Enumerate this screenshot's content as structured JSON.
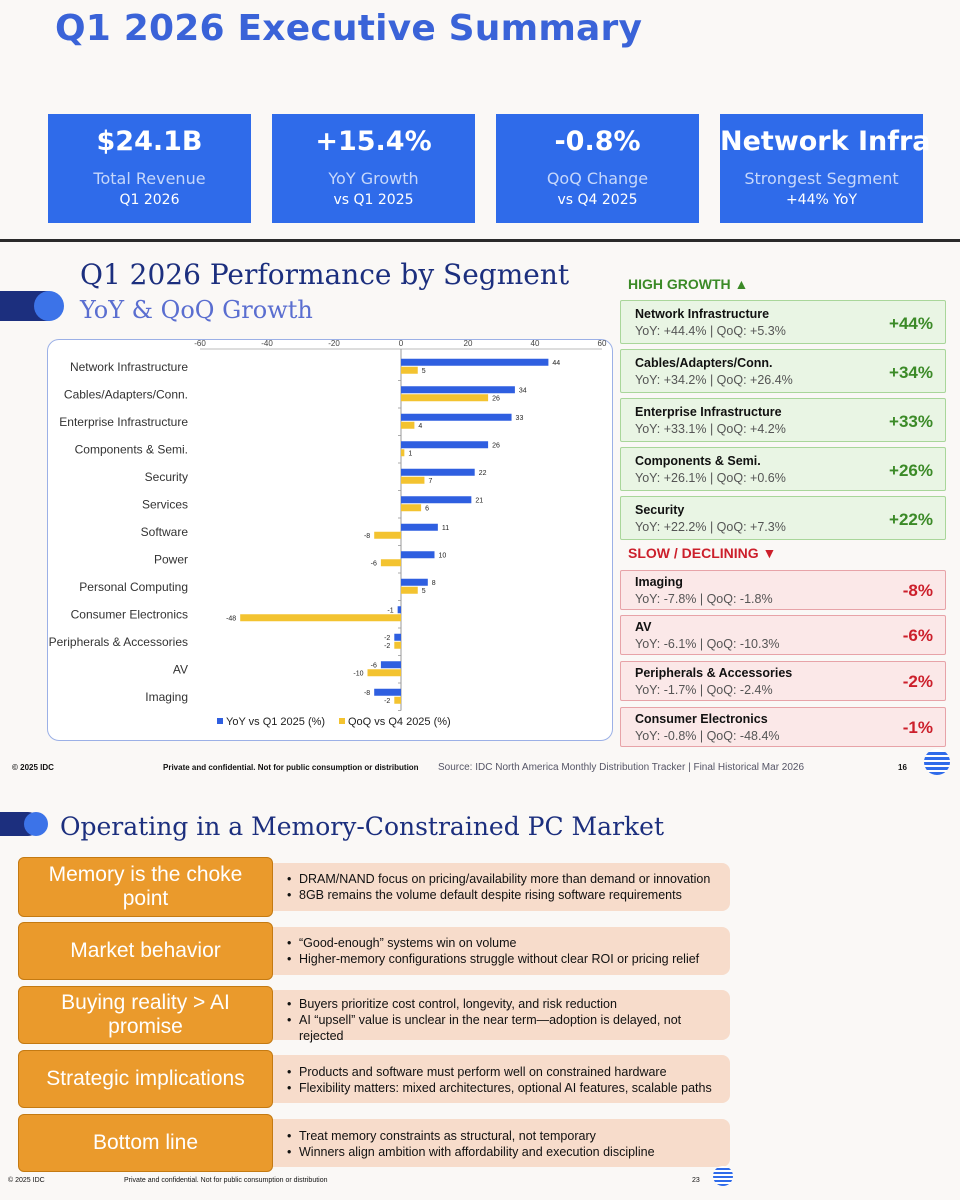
{
  "summary": {
    "title": "Q1 2026 Executive Summary",
    "kpis": [
      {
        "value": "$24.1B",
        "label": "Total Revenue",
        "sub": "Q1 2026"
      },
      {
        "value": "+15.4%",
        "label": "YoY Growth",
        "sub": "vs Q1 2025"
      },
      {
        "value": "-0.8%",
        "label": "QoQ Change",
        "sub": "vs Q4 2025"
      },
      {
        "value": "Network Infra",
        "label": "Strongest Segment",
        "sub": "+44% YoY"
      }
    ]
  },
  "segment_slide": {
    "title": "Q1 2026 Performance by Segment",
    "subtitle": "YoY & QoQ Growth",
    "high_growth_header": "HIGH GROWTH ▲",
    "slow_header": "SLOW / DECLINING ▼",
    "high_growth": [
      {
        "name": "Network Infrastructure",
        "detail": "YoY: +44.4%  |  QoQ: +5.3%",
        "pct": "+44%"
      },
      {
        "name": "Cables/Adapters/Conn.",
        "detail": "YoY: +34.2%  |  QoQ: +26.4%",
        "pct": "+34%"
      },
      {
        "name": "Enterprise Infrastructure",
        "detail": "YoY: +33.1%  |  QoQ: +4.2%",
        "pct": "+33%"
      },
      {
        "name": "Components & Semi.",
        "detail": "YoY: +26.1%  |  QoQ: +0.6%",
        "pct": "+26%"
      },
      {
        "name": "Security",
        "detail": "YoY: +22.2%  |  QoQ: +7.3%",
        "pct": "+22%"
      }
    ],
    "slow": [
      {
        "name": "Imaging",
        "detail": "YoY: -7.8%  |  QoQ: -1.8%",
        "pct": "-8%"
      },
      {
        "name": "AV",
        "detail": "YoY: -6.1%  |  QoQ: -10.3%",
        "pct": "-6%"
      },
      {
        "name": "Peripherals & Accessories",
        "detail": "YoY: -1.7%  |  QoQ: -2.4%",
        "pct": "-2%"
      },
      {
        "name": "Consumer Electronics",
        "detail": "YoY: -0.8%  |  QoQ: -48.4%",
        "pct": "-1%"
      }
    ],
    "footer_left": "© 2025 IDC",
    "footer_mid": "Private and confidential. Not for public consumption or distribution",
    "footer_source": "Source: IDC North America Monthly Distribution Tracker | Final Historical Mar 2026",
    "footer_page": "16"
  },
  "chart_data": {
    "type": "bar",
    "orientation": "horizontal",
    "categories": [
      "Network Infrastructure",
      "Cables/Adapters/Conn.",
      "Enterprise Infrastructure",
      "Components & Semi.",
      "Security",
      "Services",
      "Software",
      "Power",
      "Personal Computing",
      "Consumer Electronics",
      "Peripherals & Accessories",
      "AV",
      "Imaging"
    ],
    "series": [
      {
        "name": "YoY vs Q1 2025 (%)",
        "values": [
          44,
          34,
          33,
          26,
          22,
          21,
          11,
          10,
          8,
          -1,
          -2,
          -6,
          -8
        ],
        "color": "#2f5fe0"
      },
      {
        "name": "QoQ vs Q4 2025 (%)",
        "values": [
          5,
          26,
          4,
          1,
          7,
          6,
          -8,
          -6,
          5,
          -48,
          -2,
          -10,
          -2
        ],
        "color": "#f3c330"
      }
    ],
    "xlim": [
      -60,
      60
    ],
    "xticks": [
      -60,
      -40,
      -20,
      0,
      20,
      40,
      60
    ],
    "tick_labels": [
      "-60",
      "-40",
      "-20",
      "0",
      "20",
      "40",
      "60"
    ],
    "axis_position": "top",
    "legend_position": "bottom",
    "grid": false
  },
  "memory_slide": {
    "title": "Operating in a Memory-Constrained PC Market",
    "rows": [
      {
        "header": "Memory is the choke point",
        "bullets": [
          "DRAM/NAND focus on pricing/availability more than demand or innovation",
          "8GB remains the volume default despite rising software requirements"
        ]
      },
      {
        "header": "Market behavior",
        "bullets": [
          "“Good-enough” systems win on volume",
          "Higher-memory configurations struggle without clear ROI or pricing relief"
        ]
      },
      {
        "header": "Buying reality > AI promise",
        "bullets": [
          "Buyers prioritize cost control, longevity, and risk reduction",
          "AI “upsell” value is unclear in the near term—adoption is delayed, not rejected"
        ]
      },
      {
        "header": "Strategic implications",
        "bullets": [
          "Products and software must perform well on constrained hardware",
          "Flexibility matters: mixed architectures, optional AI features, scalable paths"
        ]
      },
      {
        "header": "Bottom line",
        "bullets": [
          "Treat memory constraints as structural, not temporary",
          "Winners align ambition with affordability and execution discipline"
        ]
      }
    ],
    "footer_left": "© 2025 IDC",
    "footer_mid": "Private and confidential. Not for public consumption or distribution",
    "footer_page": "23"
  },
  "colors": {
    "brand_blue": "#2f6bea",
    "navy": "#1c2f7e",
    "orange": "#ea9a2c",
    "growth_green": "#3b8a27",
    "decline_red": "#cc1f2b",
    "qoq_yellow": "#f3c330"
  }
}
